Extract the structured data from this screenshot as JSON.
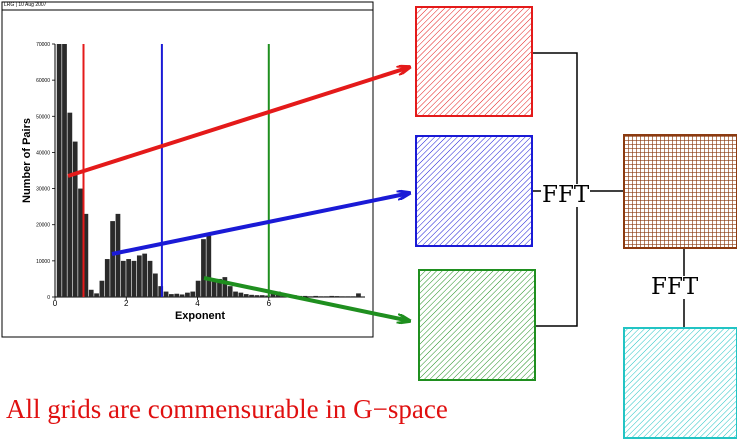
{
  "caption": "All grids are commensurable in G−space",
  "fft_labels": [
    "FFT",
    "FFT"
  ],
  "plot_header": "LRG | 10 Aug 2007",
  "colors": {
    "red": "#e41a1a",
    "blue": "#1a1ad6",
    "green": "#1f8f1f",
    "brown": "#8b3a10",
    "cyan": "#22c4c4",
    "caption": "#e01010"
  },
  "chart_data": {
    "type": "bar",
    "xlabel": "Exponent",
    "ylabel": "Number of Pairs",
    "xlim": [
      0,
      8.7
    ],
    "ylim": [
      0,
      70000
    ],
    "xticks": [
      0,
      2,
      4,
      6
    ],
    "yticks": [
      0,
      10000,
      20000,
      30000,
      40000,
      50000,
      60000,
      70000
    ],
    "bar_width": 0.15,
    "bars": [
      [
        0.05,
        70000
      ],
      [
        0.2,
        70000
      ],
      [
        0.35,
        51000
      ],
      [
        0.5,
        43000
      ],
      [
        0.65,
        30000
      ],
      [
        0.8,
        23000
      ],
      [
        0.95,
        2000
      ],
      [
        1.1,
        1000
      ],
      [
        1.25,
        4500
      ],
      [
        1.4,
        10500
      ],
      [
        1.55,
        21000
      ],
      [
        1.7,
        23000
      ],
      [
        1.85,
        10000
      ],
      [
        2.0,
        10500
      ],
      [
        2.15,
        10000
      ],
      [
        2.3,
        11500
      ],
      [
        2.45,
        12000
      ],
      [
        2.6,
        10000
      ],
      [
        2.75,
        6500
      ],
      [
        2.9,
        3000
      ],
      [
        3.05,
        1500
      ],
      [
        3.2,
        800
      ],
      [
        3.35,
        900
      ],
      [
        3.5,
        700
      ],
      [
        3.65,
        1200
      ],
      [
        3.8,
        1500
      ],
      [
        3.95,
        4500
      ],
      [
        4.1,
        16000
      ],
      [
        4.25,
        17000
      ],
      [
        4.4,
        5000
      ],
      [
        4.55,
        5000
      ],
      [
        4.7,
        5500
      ],
      [
        4.85,
        3000
      ],
      [
        5.0,
        1500
      ],
      [
        5.15,
        1200
      ],
      [
        5.3,
        800
      ],
      [
        5.45,
        600
      ],
      [
        5.6,
        500
      ],
      [
        5.75,
        500
      ],
      [
        5.9,
        400
      ],
      [
        6.05,
        1600
      ],
      [
        6.2,
        1500
      ],
      [
        6.35,
        300
      ],
      [
        6.5,
        300
      ],
      [
        6.65,
        500
      ],
      [
        6.8,
        300
      ],
      [
        6.95,
        300
      ],
      [
        7.1,
        200
      ],
      [
        7.25,
        300
      ],
      [
        7.4,
        200
      ],
      [
        7.55,
        200
      ],
      [
        7.7,
        300
      ],
      [
        7.85,
        250
      ],
      [
        8.0,
        200
      ],
      [
        8.15,
        200
      ],
      [
        8.3,
        200
      ],
      [
        8.45,
        1000
      ]
    ],
    "cutoffs": [
      {
        "x": 0.8,
        "color": "red"
      },
      {
        "x": 3.0,
        "color": "blue"
      },
      {
        "x": 6.0,
        "color": "green"
      }
    ]
  }
}
